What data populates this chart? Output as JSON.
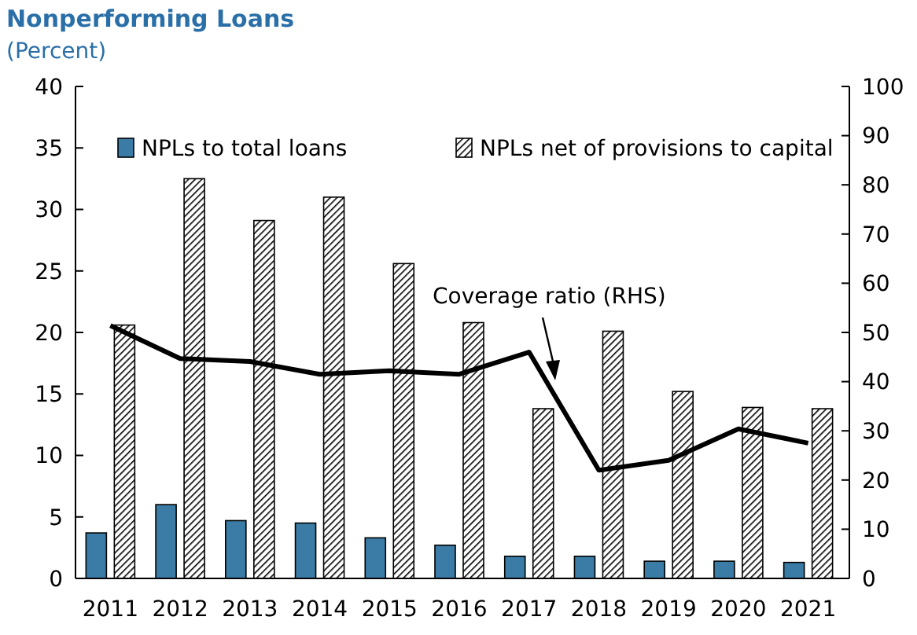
{
  "chart_data": {
    "type": "bar",
    "title": "Nonperforming Loans",
    "subtitle": "(Percent)",
    "categories": [
      "2011",
      "2012",
      "2013",
      "2014",
      "2015",
      "2016",
      "2017",
      "2018",
      "2019",
      "2020",
      "2021"
    ],
    "series": [
      {
        "name": "NPLs to total loans",
        "color": "#3a7ca5",
        "values": [
          3.7,
          6.0,
          4.7,
          4.5,
          3.3,
          2.7,
          1.8,
          1.8,
          1.4,
          1.4,
          1.3
        ]
      },
      {
        "name": "NPLs net of provisions to capital",
        "color": "#000000",
        "values": [
          20.6,
          32.5,
          29.1,
          31.0,
          25.6,
          20.8,
          13.8,
          20.1,
          15.2,
          13.9,
          13.8
        ]
      },
      {
        "name": "Coverage ratio (RHS)",
        "type": "line",
        "axis": "y2",
        "color": "#000000",
        "values": [
          51.4,
          44.7,
          44.1,
          41.5,
          42.2,
          41.5,
          46.0,
          22.0,
          24.0,
          30.4,
          27.5
        ]
      }
    ],
    "ylim": [
      0,
      40
    ],
    "yticks": [
      0,
      5,
      10,
      15,
      20,
      25,
      30,
      35,
      40
    ],
    "y2lim": [
      0,
      100
    ],
    "y2ticks": [
      0,
      10,
      20,
      30,
      40,
      50,
      60,
      70,
      80,
      90,
      100
    ],
    "legend": "top",
    "grid": false,
    "line_style": "solid"
  }
}
